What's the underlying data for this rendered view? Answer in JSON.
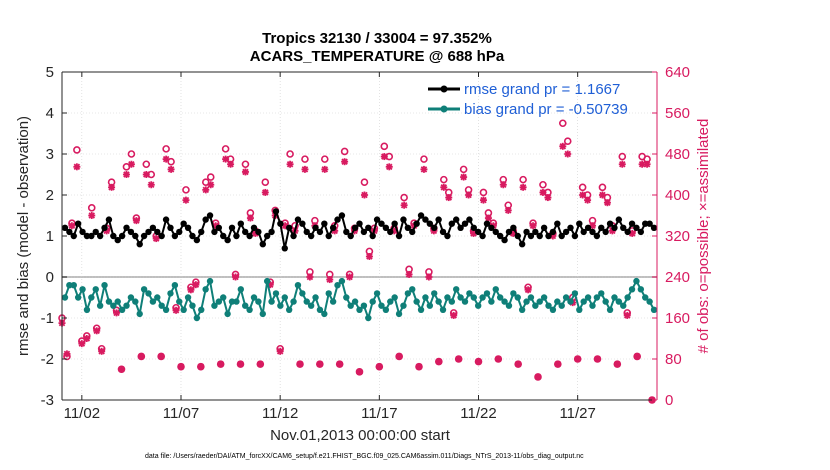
{
  "chart_data": {
    "type": "line",
    "title_line1": "Tropics 32130 / 33004 = 97.352%",
    "title_line2": "ACARS_TEMPERATURE @ 688 hPa",
    "xlabel": "Nov.01,2013 00:00:00 start",
    "ylabel_left": "rmse and bias (model - observation)",
    "ylabel_right": "# of obs: o=possible; ×=assimilated",
    "ylim_left": [
      -3,
      5
    ],
    "yticks_left": [
      "-3",
      "-2",
      "-1",
      "0",
      "1",
      "2",
      "3",
      "4",
      "5"
    ],
    "ylim_right": [
      0,
      640
    ],
    "yticks_right": [
      "0",
      "80",
      "160",
      "240",
      "320",
      "400",
      "480",
      "560",
      "640"
    ],
    "xlim": [
      0.5,
      30.5
    ],
    "xticks": [
      {
        "day": 1.5,
        "label": "11/02"
      },
      {
        "day": 6.5,
        "label": "11/07"
      },
      {
        "day": 11.5,
        "label": "11/12"
      },
      {
        "day": 16.5,
        "label": "11/17"
      },
      {
        "day": 21.5,
        "label": "11/22"
      },
      {
        "day": 26.5,
        "label": "11/27"
      }
    ],
    "legend": {
      "rmse": "rmse grand pr = 1.1667",
      "bias": "bias grand pr = -0.50739",
      "location": "top-right"
    },
    "colors": {
      "rmse": "#000000",
      "bias": "#0f7f78",
      "obs": "#d81b60",
      "zero_line": "#bfbfbf"
    },
    "obs_possible": [
      {
        "day": 0.5,
        "value": 160
      },
      {
        "day": 0.75,
        "value": 85
      },
      {
        "day": 1.0,
        "value": 345
      },
      {
        "day": 1.25,
        "value": 488
      },
      {
        "day": 1.5,
        "value": 115
      },
      {
        "day": 1.75,
        "value": 125
      },
      {
        "day": 2.0,
        "value": 375
      },
      {
        "day": 2.25,
        "value": 140
      },
      {
        "day": 2.5,
        "value": 100
      },
      {
        "day": 2.75,
        "value": 335
      },
      {
        "day": 3.0,
        "value": 425
      },
      {
        "day": 3.25,
        "value": 175
      },
      {
        "day": 3.5,
        "value": 60
      },
      {
        "day": 3.75,
        "value": 455
      },
      {
        "day": 4.0,
        "value": 480
      },
      {
        "day": 4.25,
        "value": 355
      },
      {
        "day": 4.5,
        "value": 85
      },
      {
        "day": 4.75,
        "value": 460
      },
      {
        "day": 5.0,
        "value": 440
      },
      {
        "day": 5.25,
        "value": 320
      },
      {
        "day": 5.5,
        "value": 85
      },
      {
        "day": 5.75,
        "value": 490
      },
      {
        "day": 6.0,
        "value": 465
      },
      {
        "day": 6.25,
        "value": 180
      },
      {
        "day": 6.5,
        "value": 65
      },
      {
        "day": 6.75,
        "value": 410
      },
      {
        "day": 7.0,
        "value": 220
      },
      {
        "day": 7.25,
        "value": 230
      },
      {
        "day": 7.5,
        "value": 65
      },
      {
        "day": 7.75,
        "value": 425
      },
      {
        "day": 8.0,
        "value": 435
      },
      {
        "day": 8.25,
        "value": 345
      },
      {
        "day": 8.5,
        "value": 70
      },
      {
        "day": 8.75,
        "value": 490
      },
      {
        "day": 9.0,
        "value": 470
      },
      {
        "day": 9.25,
        "value": 245
      },
      {
        "day": 9.5,
        "value": 70
      },
      {
        "day": 9.75,
        "value": 460
      },
      {
        "day": 10.0,
        "value": 365
      },
      {
        "day": 10.25,
        "value": 330
      },
      {
        "day": 10.5,
        "value": 70
      },
      {
        "day": 10.75,
        "value": 425
      },
      {
        "day": 11.0,
        "value": 230
      },
      {
        "day": 11.25,
        "value": 370
      },
      {
        "day": 11.5,
        "value": 100
      },
      {
        "day": 11.75,
        "value": 345
      },
      {
        "day": 12.0,
        "value": 480
      },
      {
        "day": 12.25,
        "value": 340
      },
      {
        "day": 12.5,
        "value": 70
      },
      {
        "day": 12.75,
        "value": 470
      },
      {
        "day": 13.0,
        "value": 250
      },
      {
        "day": 13.25,
        "value": 350
      },
      {
        "day": 13.5,
        "value": 70
      },
      {
        "day": 13.75,
        "value": 470
      },
      {
        "day": 14.0,
        "value": 245
      },
      {
        "day": 14.25,
        "value": 340
      },
      {
        "day": 14.5,
        "value": 70
      },
      {
        "day": 14.75,
        "value": 485
      },
      {
        "day": 15.0,
        "value": 245
      },
      {
        "day": 15.25,
        "value": 335
      },
      {
        "day": 15.5,
        "value": 55
      },
      {
        "day": 15.75,
        "value": 425
      },
      {
        "day": 16.0,
        "value": 290
      },
      {
        "day": 16.25,
        "value": 335
      },
      {
        "day": 16.5,
        "value": 65
      },
      {
        "day": 16.75,
        "value": 495
      },
      {
        "day": 17.0,
        "value": 475
      },
      {
        "day": 17.25,
        "value": 335
      },
      {
        "day": 17.5,
        "value": 85
      },
      {
        "day": 17.75,
        "value": 395
      },
      {
        "day": 18.0,
        "value": 255
      },
      {
        "day": 18.25,
        "value": 345
      },
      {
        "day": 18.5,
        "value": 65
      },
      {
        "day": 18.75,
        "value": 470
      },
      {
        "day": 19.0,
        "value": 250
      },
      {
        "day": 19.25,
        "value": 335
      },
      {
        "day": 19.5,
        "value": 75
      },
      {
        "day": 19.75,
        "value": 430
      },
      {
        "day": 20.0,
        "value": 405
      },
      {
        "day": 20.25,
        "value": 170
      },
      {
        "day": 20.5,
        "value": 80
      },
      {
        "day": 20.75,
        "value": 450
      },
      {
        "day": 21.0,
        "value": 410
      },
      {
        "day": 21.25,
        "value": 330
      },
      {
        "day": 21.5,
        "value": 75
      },
      {
        "day": 21.75,
        "value": 405
      },
      {
        "day": 22.0,
        "value": 365
      },
      {
        "day": 22.25,
        "value": 345
      },
      {
        "day": 22.5,
        "value": 80
      },
      {
        "day": 22.75,
        "value": 430
      },
      {
        "day": 23.0,
        "value": 380
      },
      {
        "day": 23.25,
        "value": 330
      },
      {
        "day": 23.5,
        "value": 70
      },
      {
        "day": 23.75,
        "value": 430
      },
      {
        "day": 24.0,
        "value": 220
      },
      {
        "day": 24.25,
        "value": 345
      },
      {
        "day": 24.5,
        "value": 45
      },
      {
        "day": 24.75,
        "value": 420
      },
      {
        "day": 25.0,
        "value": 405
      },
      {
        "day": 25.25,
        "value": 325
      },
      {
        "day": 25.5,
        "value": 70
      },
      {
        "day": 25.75,
        "value": 540
      },
      {
        "day": 26.0,
        "value": 505
      },
      {
        "day": 26.25,
        "value": 200
      },
      {
        "day": 26.5,
        "value": 80
      },
      {
        "day": 26.75,
        "value": 415
      },
      {
        "day": 27.0,
        "value": 400
      },
      {
        "day": 27.25,
        "value": 350
      },
      {
        "day": 27.5,
        "value": 80
      },
      {
        "day": 27.75,
        "value": 415
      },
      {
        "day": 28.0,
        "value": 395
      },
      {
        "day": 28.25,
        "value": 340
      },
      {
        "day": 28.5,
        "value": 70
      },
      {
        "day": 28.75,
        "value": 475
      },
      {
        "day": 29.0,
        "value": 170
      },
      {
        "day": 29.25,
        "value": 330
      },
      {
        "day": 29.5,
        "value": 85
      },
      {
        "day": 29.75,
        "value": 475
      },
      {
        "day": 30.0,
        "value": 470
      },
      {
        "day": 30.25,
        "value": 0
      }
    ],
    "obs_assimilated": [
      {
        "day": 0.5,
        "value": 150
      },
      {
        "day": 0.75,
        "value": 90
      },
      {
        "day": 1.0,
        "value": 340
      },
      {
        "day": 1.25,
        "value": 455
      },
      {
        "day": 1.5,
        "value": 110
      },
      {
        "day": 1.75,
        "value": 120
      },
      {
        "day": 2.0,
        "value": 360
      },
      {
        "day": 2.25,
        "value": 135
      },
      {
        "day": 2.5,
        "value": 95
      },
      {
        "day": 2.75,
        "value": 330
      },
      {
        "day": 3.0,
        "value": 415
      },
      {
        "day": 3.25,
        "value": 170
      },
      {
        "day": 3.5,
        "value": 60
      },
      {
        "day": 3.75,
        "value": 440
      },
      {
        "day": 4.0,
        "value": 460
      },
      {
        "day": 4.25,
        "value": 350
      },
      {
        "day": 4.5,
        "value": 85
      },
      {
        "day": 4.75,
        "value": 440
      },
      {
        "day": 5.0,
        "value": 420
      },
      {
        "day": 5.25,
        "value": 315
      },
      {
        "day": 5.5,
        "value": 85
      },
      {
        "day": 5.75,
        "value": 470
      },
      {
        "day": 6.0,
        "value": 450
      },
      {
        "day": 6.25,
        "value": 175
      },
      {
        "day": 6.5,
        "value": 65
      },
      {
        "day": 6.75,
        "value": 390
      },
      {
        "day": 7.0,
        "value": 215
      },
      {
        "day": 7.25,
        "value": 225
      },
      {
        "day": 7.5,
        "value": 65
      },
      {
        "day": 7.75,
        "value": 410
      },
      {
        "day": 8.0,
        "value": 420
      },
      {
        "day": 8.25,
        "value": 340
      },
      {
        "day": 8.5,
        "value": 70
      },
      {
        "day": 8.75,
        "value": 470
      },
      {
        "day": 9.0,
        "value": 460
      },
      {
        "day": 9.25,
        "value": 240
      },
      {
        "day": 9.5,
        "value": 70
      },
      {
        "day": 9.75,
        "value": 445
      },
      {
        "day": 10.0,
        "value": 355
      },
      {
        "day": 10.25,
        "value": 325
      },
      {
        "day": 10.5,
        "value": 70
      },
      {
        "day": 10.75,
        "value": 405
      },
      {
        "day": 11.0,
        "value": 225
      },
      {
        "day": 11.25,
        "value": 360
      },
      {
        "day": 11.5,
        "value": 95
      },
      {
        "day": 11.75,
        "value": 340
      },
      {
        "day": 12.0,
        "value": 460
      },
      {
        "day": 12.25,
        "value": 330
      },
      {
        "day": 12.5,
        "value": 70
      },
      {
        "day": 12.75,
        "value": 450
      },
      {
        "day": 13.0,
        "value": 240
      },
      {
        "day": 13.25,
        "value": 340
      },
      {
        "day": 13.5,
        "value": 70
      },
      {
        "day": 13.75,
        "value": 450
      },
      {
        "day": 14.0,
        "value": 235
      },
      {
        "day": 14.25,
        "value": 330
      },
      {
        "day": 14.5,
        "value": 70
      },
      {
        "day": 14.75,
        "value": 465
      },
      {
        "day": 15.0,
        "value": 240
      },
      {
        "day": 15.25,
        "value": 330
      },
      {
        "day": 15.5,
        "value": 55
      },
      {
        "day": 15.75,
        "value": 400
      },
      {
        "day": 16.0,
        "value": 280
      },
      {
        "day": 16.25,
        "value": 330
      },
      {
        "day": 16.5,
        "value": 65
      },
      {
        "day": 16.75,
        "value": 475
      },
      {
        "day": 17.0,
        "value": 455
      },
      {
        "day": 17.25,
        "value": 330
      },
      {
        "day": 17.5,
        "value": 85
      },
      {
        "day": 17.75,
        "value": 380
      },
      {
        "day": 18.0,
        "value": 245
      },
      {
        "day": 18.25,
        "value": 340
      },
      {
        "day": 18.5,
        "value": 65
      },
      {
        "day": 18.75,
        "value": 450
      },
      {
        "day": 19.0,
        "value": 240
      },
      {
        "day": 19.25,
        "value": 330
      },
      {
        "day": 19.5,
        "value": 75
      },
      {
        "day": 19.75,
        "value": 415
      },
      {
        "day": 20.0,
        "value": 395
      },
      {
        "day": 20.25,
        "value": 165
      },
      {
        "day": 20.5,
        "value": 80
      },
      {
        "day": 20.75,
        "value": 435
      },
      {
        "day": 21.0,
        "value": 400
      },
      {
        "day": 21.25,
        "value": 325
      },
      {
        "day": 21.5,
        "value": 75
      },
      {
        "day": 21.75,
        "value": 390
      },
      {
        "day": 22.0,
        "value": 355
      },
      {
        "day": 22.25,
        "value": 340
      },
      {
        "day": 22.5,
        "value": 80
      },
      {
        "day": 22.75,
        "value": 420
      },
      {
        "day": 23.0,
        "value": 370
      },
      {
        "day": 23.25,
        "value": 325
      },
      {
        "day": 23.5,
        "value": 70
      },
      {
        "day": 23.75,
        "value": 415
      },
      {
        "day": 24.0,
        "value": 215
      },
      {
        "day": 24.25,
        "value": 340
      },
      {
        "day": 24.5,
        "value": 45
      },
      {
        "day": 24.75,
        "value": 405
      },
      {
        "day": 25.0,
        "value": 395
      },
      {
        "day": 25.25,
        "value": 320
      },
      {
        "day": 25.5,
        "value": 70
      },
      {
        "day": 25.75,
        "value": 495
      },
      {
        "day": 26.0,
        "value": 480
      },
      {
        "day": 26.25,
        "value": 190
      },
      {
        "day": 26.5,
        "value": 80
      },
      {
        "day": 26.75,
        "value": 400
      },
      {
        "day": 27.0,
        "value": 390
      },
      {
        "day": 27.25,
        "value": 340
      },
      {
        "day": 27.5,
        "value": 80
      },
      {
        "day": 27.75,
        "value": 400
      },
      {
        "day": 28.0,
        "value": 385
      },
      {
        "day": 28.25,
        "value": 330
      },
      {
        "day": 28.5,
        "value": 70
      },
      {
        "day": 28.75,
        "value": 460
      },
      {
        "day": 29.0,
        "value": 165
      },
      {
        "day": 29.25,
        "value": 325
      },
      {
        "day": 29.5,
        "value": 85
      },
      {
        "day": 29.75,
        "value": 460
      },
      {
        "day": 30.0,
        "value": 460
      },
      {
        "day": 30.25,
        "value": 0
      }
    ]
  },
  "footer": {
    "text": "data file: /Users/raeder/DAI/ATM_forcXX/CAM6_setup/f.e21.FHIST_BGC.f09_025.CAM6assim.011/Diags_NTrS_2013-11/obs_diag_output.nc"
  }
}
